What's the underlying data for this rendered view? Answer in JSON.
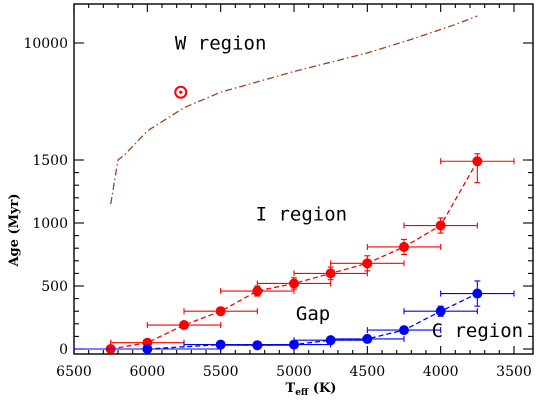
{
  "chart_data": {
    "type": "scatter",
    "title": "",
    "xlabel_main": "T",
    "xlabel_sub": "eff",
    "xlabel_unit": " (K)",
    "ylabel": "Age (Myr)",
    "xlim": [
      6500,
      3400
    ],
    "x_reversed": true,
    "ylim_note": "piecewise: linear 0-1500 Myr, log-like above",
    "xticks": [
      6500,
      6000,
      5500,
      5000,
      4500,
      4000,
      3500
    ],
    "xtick_labels": [
      "6500",
      "6000",
      "5500",
      "5000",
      "4500",
      "4000",
      "3500"
    ],
    "yticks": [
      0,
      500,
      1000,
      1500,
      10000
    ],
    "ytick_labels": [
      "0",
      "500",
      "1000",
      "1500",
      "10000"
    ],
    "grid": false,
    "colors": {
      "red": "#ff0000",
      "blue": "#0000ff",
      "isochrone": "#a0421a",
      "axis": "#000000"
    },
    "series": [
      {
        "marker_color": "#ff0000",
        "line_style": "dashed",
        "points": [
          {
            "x": 6250,
            "y": 0,
            "xerr": 250,
            "yerr": 20
          },
          {
            "x": 6000,
            "y": 50,
            "xerr": 250,
            "yerr": 20
          },
          {
            "x": 5750,
            "y": 190,
            "xerr": 250,
            "yerr": 25
          },
          {
            "x": 5500,
            "y": 300,
            "xerr": 250,
            "yerr": 30
          },
          {
            "x": 5250,
            "y": 460,
            "xerr": 250,
            "yerr": 40
          },
          {
            "x": 5000,
            "y": 520,
            "xerr": 250,
            "yerr": 45
          },
          {
            "x": 4750,
            "y": 600,
            "xerr": 250,
            "yerr": 50
          },
          {
            "x": 4500,
            "y": 680,
            "xerr": 250,
            "yerr": 60
          },
          {
            "x": 4250,
            "y": 810,
            "xerr": 250,
            "yerr": 60
          },
          {
            "x": 4000,
            "y": 980,
            "xerr": 250,
            "yerr": 60
          },
          {
            "x": 3750,
            "y": 1490,
            "xerr": 250,
            "yerr": 170
          }
        ]
      },
      {
        "marker_color": "#0000ff",
        "line_style": "dashed",
        "points": [
          {
            "x": 6000,
            "y": 0,
            "xerr": 500,
            "yerr": 5
          },
          {
            "x": 5500,
            "y": 35,
            "xerr": 250,
            "yerr": 10
          },
          {
            "x": 5250,
            "y": 30,
            "xerr": 250,
            "yerr": 10
          },
          {
            "x": 5000,
            "y": 35,
            "xerr": 250,
            "yerr": 10
          },
          {
            "x": 4750,
            "y": 70,
            "xerr": 250,
            "yerr": 15
          },
          {
            "x": 4500,
            "y": 80,
            "xerr": 250,
            "yerr": 15
          },
          {
            "x": 4250,
            "y": 150,
            "xerr": 250,
            "yerr": 20
          },
          {
            "x": 4000,
            "y": 300,
            "xerr": 250,
            "yerr": 40
          },
          {
            "x": 3750,
            "y": 440,
            "xerr": 250,
            "yerr": 100
          }
        ]
      }
    ],
    "isochrone": {
      "line_style": "dash-dot",
      "points": [
        {
          "x": 6250,
          "y": 1150
        },
        {
          "x": 6200,
          "y": 1500
        },
        {
          "x": 6150,
          "y": 1650
        },
        {
          "x": 6000,
          "y": 2400
        },
        {
          "x": 5750,
          "y": 3500
        },
        {
          "x": 5500,
          "y": 4500
        },
        {
          "x": 5000,
          "y": 6300
        },
        {
          "x": 4500,
          "y": 8500
        },
        {
          "x": 4200,
          "y": 10600
        },
        {
          "x": 3900,
          "y": 13500
        },
        {
          "x": 3750,
          "y": 15500
        }
      ]
    },
    "sun": {
      "x": 5772,
      "y": 4500,
      "symbol": "⊙"
    },
    "annotations": [
      {
        "text": "W region",
        "x": 5500,
        "y": 9000
      },
      {
        "text": "I region",
        "x": 4950,
        "y": 1020
      },
      {
        "text": "Gap",
        "x": 4870,
        "y": 230
      },
      {
        "text": "C region",
        "x": 3750,
        "y": 95
      }
    ]
  }
}
